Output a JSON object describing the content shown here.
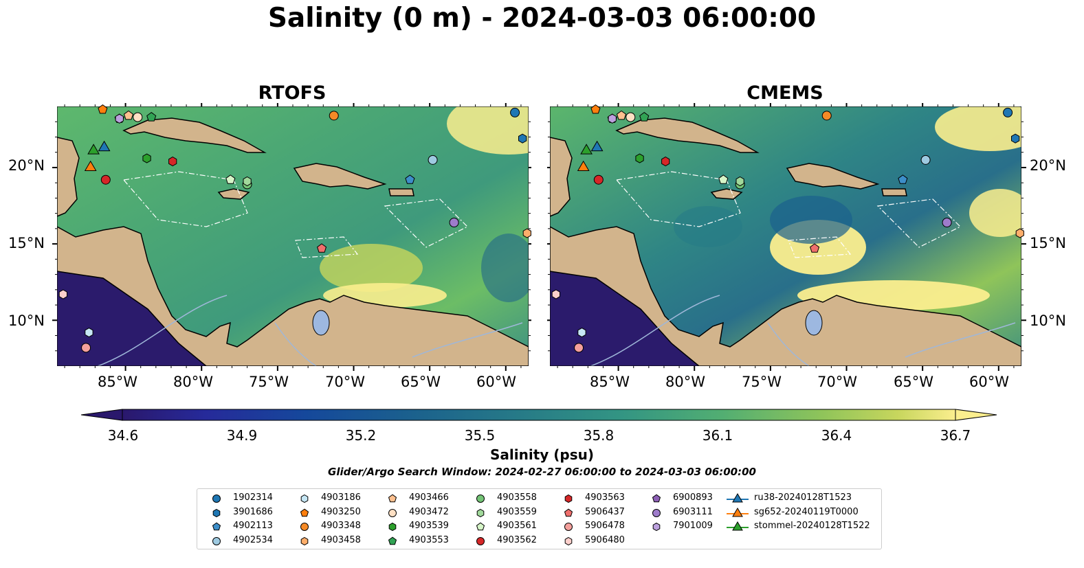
{
  "title": "Salinity (0 m) - 2024-03-03 06:00:00",
  "panels": [
    {
      "title": "RTOFS"
    },
    {
      "title": "CMEMS"
    }
  ],
  "axes": {
    "lon_ticks": [
      "85°W",
      "80°W",
      "75°W",
      "70°W",
      "65°W",
      "60°W"
    ],
    "lat_ticks": [
      "20°N",
      "15°N",
      "10°N"
    ],
    "lon_range": [
      -89.5,
      -58.5
    ],
    "lat_range": [
      7.0,
      24.0
    ]
  },
  "colorbar": {
    "ticks": [
      "34.6",
      "34.9",
      "35.2",
      "35.5",
      "35.8",
      "36.1",
      "36.4",
      "36.7"
    ],
    "label": "Salinity (psu)",
    "range": [
      34.6,
      36.7
    ],
    "extend": "both",
    "colormap": "haline",
    "levels": 21
  },
  "search_window": "Glider/Argo Search Window: 2024-02-27 06:00:00 to 2024-03-03 06:00:00",
  "legend": {
    "columns": [
      [
        {
          "name": "1902314",
          "marker": "circle",
          "color": "#1f77b4"
        },
        {
          "name": "3901686",
          "marker": "hexagon",
          "color": "#1f77b4"
        },
        {
          "name": "4902113",
          "marker": "pentagon",
          "color": "#3d8ec9"
        },
        {
          "name": "4902534",
          "marker": "circle",
          "color": "#9ecae1"
        }
      ],
      [
        {
          "name": "4903186",
          "marker": "hexagon",
          "color": "#c6e7f5"
        },
        {
          "name": "4903250",
          "marker": "pentagon",
          "color": "#ff7f0e"
        },
        {
          "name": "4903348",
          "marker": "circle",
          "color": "#f58a27"
        },
        {
          "name": "4903458",
          "marker": "hexagon",
          "color": "#fdae6b"
        }
      ],
      [
        {
          "name": "4903466",
          "marker": "pentagon",
          "color": "#fdc08f"
        },
        {
          "name": "4903472",
          "marker": "circle",
          "color": "#fee0c4"
        },
        {
          "name": "4903539",
          "marker": "hexagon",
          "color": "#2ca02c"
        },
        {
          "name": "4903553",
          "marker": "pentagon",
          "color": "#31a354"
        }
      ],
      [
        {
          "name": "4903558",
          "marker": "circle",
          "color": "#74c476"
        },
        {
          "name": "4903559",
          "marker": "hexagon",
          "color": "#a1d99b"
        },
        {
          "name": "4903561",
          "marker": "pentagon",
          "color": "#d6f5c8"
        },
        {
          "name": "4903562",
          "marker": "circle",
          "color": "#d62728"
        }
      ],
      [
        {
          "name": "4903563",
          "marker": "hexagon",
          "color": "#d62728"
        },
        {
          "name": "5906437",
          "marker": "pentagon",
          "color": "#ef6f6c"
        },
        {
          "name": "5906478",
          "marker": "circle",
          "color": "#f4a09c"
        },
        {
          "name": "5906480",
          "marker": "hexagon",
          "color": "#fdd0cc"
        }
      ],
      [
        {
          "name": "6900893",
          "marker": "pentagon",
          "color": "#8c5fb5"
        },
        {
          "name": "6903111",
          "marker": "circle",
          "color": "#9e7ccb"
        },
        {
          "name": "7901009",
          "marker": "hexagon",
          "color": "#bca1de"
        }
      ],
      [
        {
          "name": "ru38-20240128T1523",
          "marker": "triangle-line",
          "color": "#1f77b4"
        },
        {
          "name": "sg652-20240119T0000",
          "marker": "triangle-line",
          "color": "#ff7f0e"
        },
        {
          "name": "stommel-20240128T1522",
          "marker": "triangle-line",
          "color": "#2ca02c"
        }
      ]
    ]
  },
  "floats": [
    {
      "id": "1902314",
      "lon": -59.4,
      "lat": 23.6
    },
    {
      "id": "3901686",
      "lon": -58.9,
      "lat": 21.9
    },
    {
      "id": "4902113",
      "lon": -66.3,
      "lat": 19.2
    },
    {
      "id": "4902534",
      "lon": -64.8,
      "lat": 20.5
    },
    {
      "id": "4903186",
      "lon": -87.4,
      "lat": 9.2
    },
    {
      "id": "4903250",
      "lon": -86.5,
      "lat": 23.8
    },
    {
      "id": "4903348",
      "lon": -71.3,
      "lat": 23.4
    },
    {
      "id": "4903458",
      "lon": -58.6,
      "lat": 15.7
    },
    {
      "id": "4903466",
      "lon": -84.8,
      "lat": 23.4
    },
    {
      "id": "4903472",
      "lon": -84.2,
      "lat": 23.3
    },
    {
      "id": "4903539",
      "lon": -83.6,
      "lat": 20.6
    },
    {
      "id": "4903553",
      "lon": -83.3,
      "lat": 23.3
    },
    {
      "id": "4903558",
      "lon": -77.0,
      "lat": 18.9
    },
    {
      "id": "4903559",
      "lon": -77.0,
      "lat": 19.1
    },
    {
      "id": "4903561",
      "lon": -78.1,
      "lat": 19.2
    },
    {
      "id": "4903562",
      "lon": -86.3,
      "lat": 19.2
    },
    {
      "id": "4903563",
      "lon": -81.9,
      "lat": 20.4
    },
    {
      "id": "5906437",
      "lon": -72.1,
      "lat": 14.7
    },
    {
      "id": "5906478",
      "lon": -87.6,
      "lat": 8.2
    },
    {
      "id": "5906480",
      "lon": -89.1,
      "lat": 11.7
    },
    {
      "id": "6900893",
      "lon": -85.4,
      "lat": 23.2
    },
    {
      "id": "6903111",
      "lon": -63.4,
      "lat": 16.4
    },
    {
      "id": "7901009",
      "lon": -85.4,
      "lat": 23.2
    }
  ],
  "gliders": [
    {
      "id": "ru38-20240128T1523",
      "lon": -86.4,
      "lat": 21.3
    },
    {
      "id": "sg652-20240119T0000",
      "lon": -87.3,
      "lat": 20.0
    },
    {
      "id": "stommel-20240128T1522",
      "lon": -87.1,
      "lat": 21.1
    }
  ],
  "colors": {
    "land": "#d2b48c",
    "lake": "#9db8e0",
    "river": "#9fb7d9",
    "deep_fresh": "#2b1b6c"
  }
}
